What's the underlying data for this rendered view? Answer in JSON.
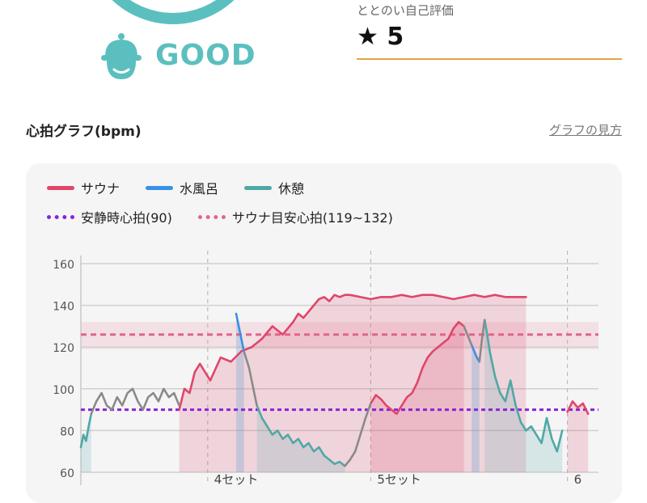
{
  "status": {
    "icon": "sauna-hat-face-icon",
    "label": "GOOD",
    "color": "#5bbfbf"
  },
  "rating": {
    "label": "ととのい自己評価",
    "value": "★ 5"
  },
  "chart_section": {
    "title": "心拍グラフ(bpm)",
    "help_link": "グラフの見方"
  },
  "legend": {
    "sauna": "サウナ",
    "water_bath": "水風呂",
    "rest": "休憩",
    "resting_hr": "安静時心拍(90)",
    "sauna_target": "サウナ目安心拍(119~132)"
  },
  "colors": {
    "sauna": "#e0456a",
    "water_bath": "#3a8fe8",
    "rest": "#4fa8a6",
    "other": "#8a8a8a",
    "resting_hr_line": "#8a24d8",
    "target_line": "#e0668a",
    "rating_underline": "#e1a545"
  },
  "chart_data": {
    "type": "line",
    "title": "",
    "xlabel": "",
    "ylabel": "",
    "ylim": [
      60,
      160
    ],
    "y_ticks": [
      60,
      80,
      100,
      120,
      140,
      160
    ],
    "resting_hr": 90,
    "target_range": [
      119,
      132
    ],
    "target_line": 126,
    "set_markers": [
      {
        "label": "4セット",
        "x": 0.245
      },
      {
        "label": "5セット",
        "x": 0.56
      },
      {
        "label": "6",
        "x": 0.94
      }
    ],
    "series": [
      {
        "name": "サウナ",
        "phase": "sauna",
        "segments": [
          {
            "x": [
              0.19,
              0.2,
              0.21,
              0.22,
              0.23,
              0.25,
              0.27,
              0.29,
              0.31,
              0.33,
              0.35,
              0.37,
              0.39,
              0.41,
              0.42,
              0.43,
              0.44,
              0.45,
              0.46,
              0.47,
              0.48,
              0.49,
              0.5,
              0.51,
              0.52,
              0.54,
              0.56,
              0.58,
              0.6,
              0.62,
              0.64,
              0.66,
              0.68,
              0.7,
              0.72,
              0.74,
              0.76,
              0.78,
              0.8,
              0.82,
              0.84,
              0.86
            ],
            "y": [
              90,
              100,
              98,
              108,
              112,
              104,
              115,
              113,
              118,
              120,
              124,
              130,
              126,
              132,
              136,
              134,
              137,
              140,
              143,
              144,
              142,
              145,
              144,
              145,
              145,
              144,
              143,
              144,
              144,
              145,
              144,
              145,
              145,
              144,
              143,
              144,
              145,
              144,
              145,
              144,
              144,
              144
            ]
          },
          {
            "x": [
              0.56,
              0.57,
              0.58,
              0.59,
              0.6,
              0.61,
              0.62,
              0.63,
              0.64,
              0.65,
              0.66,
              0.67,
              0.68,
              0.69,
              0.7,
              0.71,
              0.72,
              0.73,
              0.74
            ],
            "y": [
              93,
              97,
              95,
              92,
              90,
              88,
              92,
              96,
              98,
              103,
              110,
              115,
              118,
              120,
              122,
              124,
              129,
              132,
              130
            ]
          },
          {
            "x": [
              0.94,
              0.95,
              0.96,
              0.97,
              0.98
            ],
            "y": [
              89,
              94,
              91,
              93,
              88
            ]
          }
        ]
      },
      {
        "name": "水風呂",
        "phase": "water_bath",
        "segments": [
          {
            "x": [
              0.3,
              0.305,
              0.31,
              0.315
            ],
            "y": [
              136,
              130,
              124,
              118
            ]
          },
          {
            "x": [
              0.755,
              0.76,
              0.765,
              0.77
            ],
            "y": [
              121,
              118,
              115,
              113
            ]
          }
        ]
      },
      {
        "name": "休憩",
        "phase": "rest",
        "segments": [
          {
            "x": [
              0.0,
              0.005,
              0.01,
              0.015,
              0.02
            ],
            "y": [
              72,
              78,
              75,
              82,
              88
            ]
          },
          {
            "x": [
              0.34,
              0.35,
              0.36,
              0.37,
              0.38,
              0.39,
              0.4,
              0.41,
              0.42,
              0.43,
              0.44,
              0.45,
              0.46,
              0.47,
              0.48,
              0.49,
              0.5,
              0.51
            ],
            "y": [
              92,
              86,
              82,
              78,
              80,
              76,
              78,
              74,
              76,
              72,
              74,
              70,
              72,
              68,
              66,
              64,
              65,
              63
            ]
          },
          {
            "x": [
              0.78,
              0.785,
              0.79,
              0.8,
              0.81,
              0.82,
              0.83,
              0.84,
              0.85,
              0.86,
              0.87,
              0.88,
              0.89,
              0.9,
              0.91,
              0.92,
              0.93
            ],
            "y": [
              133,
              126,
              118,
              106,
              98,
              94,
              104,
              92,
              84,
              80,
              82,
              78,
              74,
              86,
              76,
              70,
              80
            ]
          }
        ]
      },
      {
        "name": "",
        "phase": "other",
        "segments": [
          {
            "x": [
              0.02,
              0.03,
              0.04,
              0.05,
              0.06,
              0.07,
              0.08,
              0.09,
              0.1,
              0.11,
              0.12,
              0.13,
              0.14,
              0.15,
              0.16,
              0.17,
              0.18,
              0.19
            ],
            "y": [
              88,
              94,
              98,
              92,
              90,
              96,
              92,
              98,
              100,
              94,
              90,
              96,
              98,
              94,
              100,
              96,
              98,
              92
            ]
          },
          {
            "x": [
              0.315,
              0.32,
              0.325,
              0.33,
              0.335,
              0.34
            ],
            "y": [
              118,
              114,
              110,
              104,
              98,
              92
            ]
          },
          {
            "x": [
              0.51,
              0.52,
              0.53,
              0.54,
              0.55,
              0.56
            ],
            "y": [
              63,
              66,
              70,
              78,
              86,
              93
            ]
          },
          {
            "x": [
              0.74,
              0.745,
              0.75,
              0.755
            ],
            "y": [
              130,
              127,
              124,
              121
            ]
          },
          {
            "x": [
              0.77,
              0.775,
              0.78
            ],
            "y": [
              113,
              124,
              133
            ]
          }
        ]
      }
    ]
  }
}
